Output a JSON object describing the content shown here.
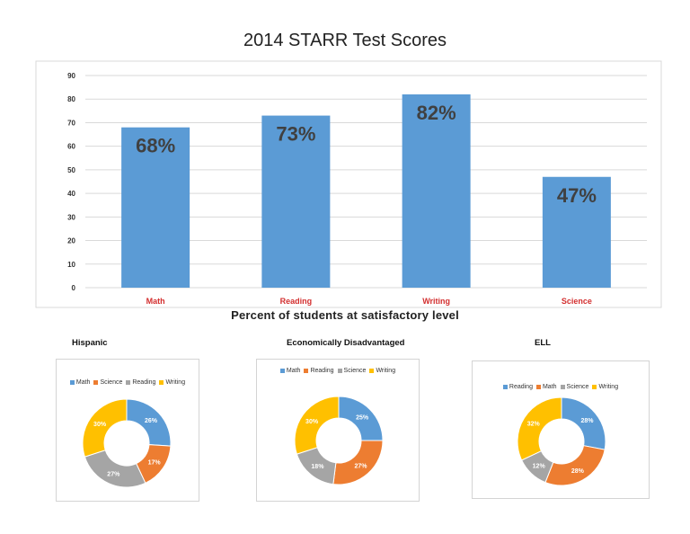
{
  "chart_data": [
    {
      "type": "bar",
      "title": "2014 STARR Test Scores",
      "caption": "Percent of students at satisfactory level",
      "categories": [
        "Math",
        "Reading",
        "Writing",
        "Science"
      ],
      "values": [
        68,
        73,
        82,
        47
      ],
      "data_labels": [
        "68%",
        "73%",
        "82%",
        "47%"
      ],
      "yticks": [
        "0",
        "10",
        "20",
        "30",
        "40",
        "50",
        "60",
        "70",
        "80",
        "90"
      ],
      "ylim": [
        0,
        90
      ],
      "grid": true,
      "bar_color": "#5b9bd5",
      "category_label_color": "#d32f2f"
    },
    {
      "type": "pie",
      "title": "Hispanic",
      "categories": [
        "Math",
        "Science",
        "Reading",
        "Writing"
      ],
      "values": [
        26,
        17,
        27,
        30
      ],
      "data_labels": [
        "26%",
        "17%",
        "27%",
        "30%"
      ],
      "colors": [
        "#5b9bd5",
        "#ed7d31",
        "#a5a5a5",
        "#ffc000"
      ],
      "legend": "top"
    },
    {
      "type": "pie",
      "title": "Economically Disadvantaged",
      "categories": [
        "Math",
        "Reading",
        "Science",
        "Writing"
      ],
      "values": [
        25,
        27,
        18,
        30
      ],
      "data_labels": [
        "25%",
        "27%",
        "18%",
        "30%"
      ],
      "colors": [
        "#5b9bd5",
        "#ed7d31",
        "#a5a5a5",
        "#ffc000"
      ],
      "legend": "top"
    },
    {
      "type": "pie",
      "title": "ELL",
      "categories": [
        "Reading",
        "Math",
        "Science",
        "Writing"
      ],
      "values": [
        28,
        28,
        12,
        32
      ],
      "data_labels": [
        "28%",
        "28%",
        "12%",
        "32%"
      ],
      "colors": [
        "#5b9bd5",
        "#ed7d31",
        "#a5a5a5",
        "#ffc000"
      ],
      "legend": "top"
    }
  ]
}
